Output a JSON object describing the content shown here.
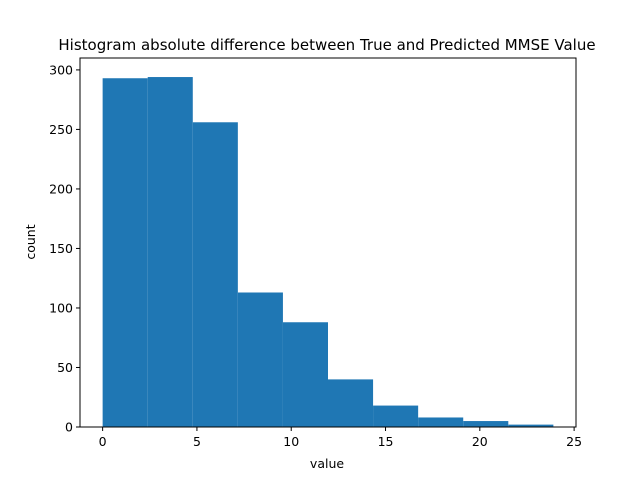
{
  "chart_data": {
    "type": "bar",
    "title": "Histogram absolute difference between True and Predicted MMSE Value",
    "xlabel": "value",
    "ylabel": "count",
    "bin_edges": [
      0.0,
      2.39,
      4.78,
      7.17,
      9.56,
      11.95,
      14.34,
      16.73,
      19.12,
      21.51,
      23.9
    ],
    "values": [
      293,
      294,
      256,
      113,
      88,
      40,
      18,
      8,
      5,
      2
    ],
    "xlim": [
      -1.2,
      25.1
    ],
    "ylim": [
      0,
      310
    ],
    "xticks": [
      0,
      5,
      10,
      15,
      20,
      25
    ],
    "yticks": [
      0,
      50,
      100,
      150,
      200,
      250,
      300
    ],
    "bar_color": "#1f77b4",
    "grid": false
  }
}
